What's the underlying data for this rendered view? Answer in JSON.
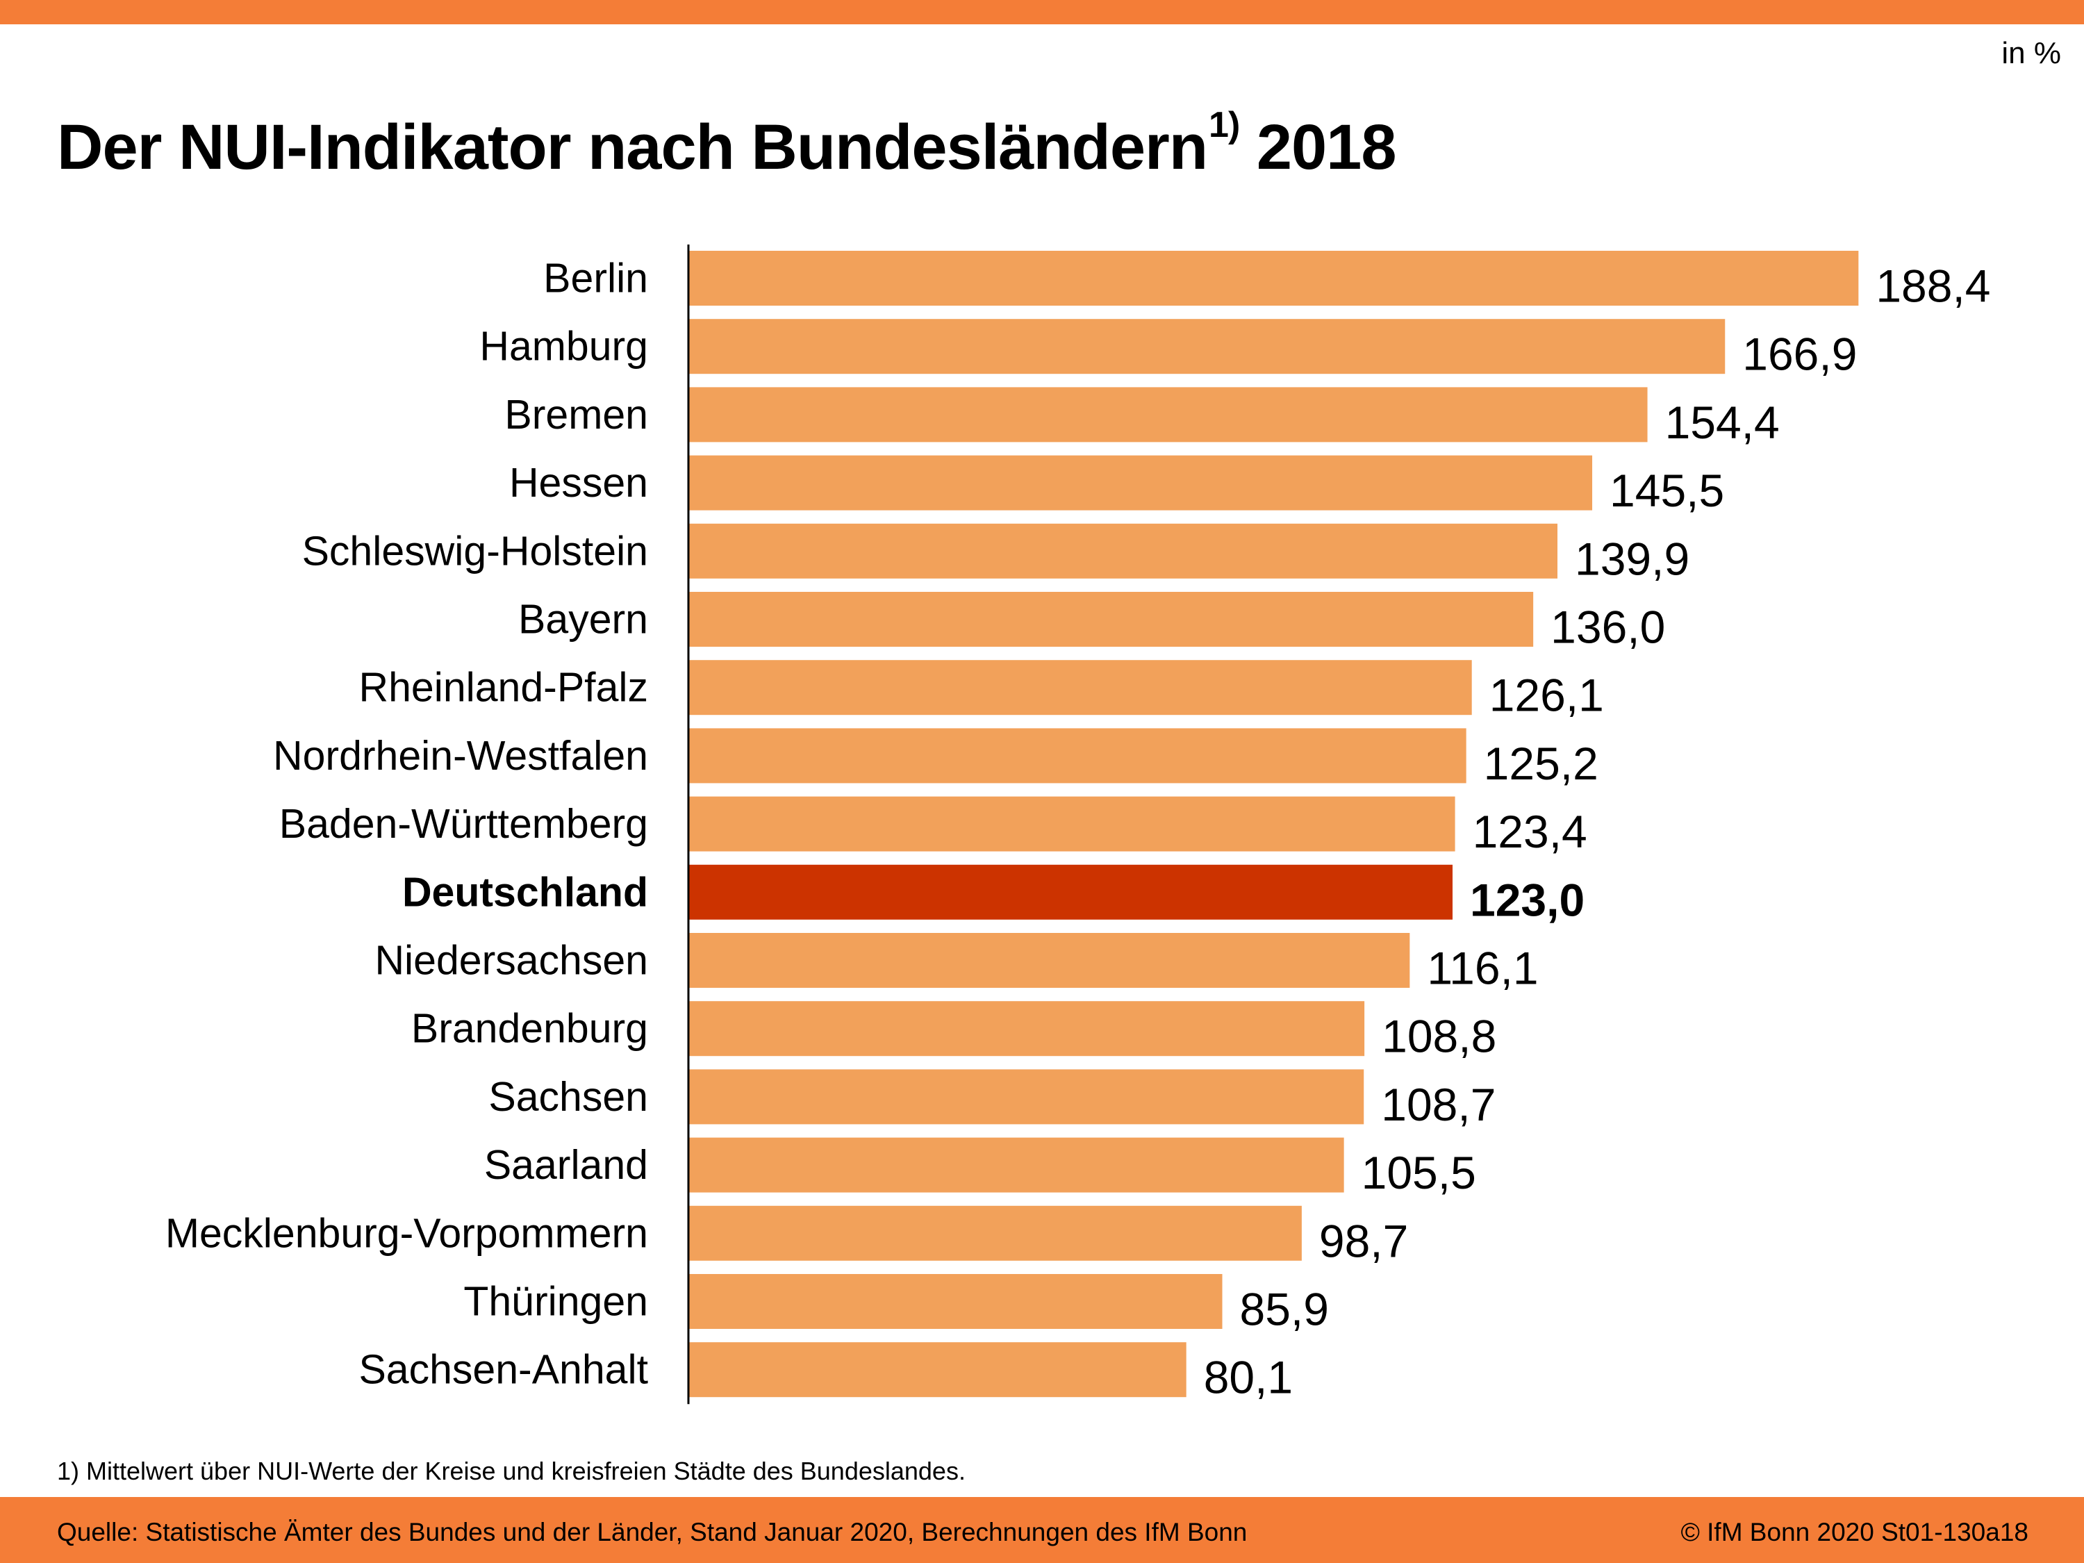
{
  "header": {
    "unit_label": "in %",
    "title": "Der NUI-Indikator nach Bundesländern",
    "title_superscript": "1)",
    "title_year": "2018"
  },
  "colors": {
    "band": "#f47d37",
    "bar": "#f2a15a",
    "highlight_bar": "#cc3300",
    "axis": "#000000"
  },
  "chart_data": {
    "type": "bar",
    "orientation": "horizontal",
    "title": "Der NUI-Indikator nach Bundesländern 1) 2018",
    "unit": "in %",
    "xlabel": "",
    "ylabel": "",
    "xlim": [
      0,
      200
    ],
    "grid": false,
    "legend": "none",
    "highlight_category": "Deutschland",
    "categories": [
      "Berlin",
      "Hamburg",
      "Bremen",
      "Hessen",
      "Schleswig-Holstein",
      "Bayern",
      "Rheinland-Pfalz",
      "Nordrhein-Westfalen",
      "Baden-Württemberg",
      "Deutschland",
      "Niedersachsen",
      "Brandenburg",
      "Sachsen",
      "Saarland",
      "Mecklenburg-Vorpommern",
      "Thüringen",
      "Sachsen-Anhalt"
    ],
    "values": [
      188.4,
      166.9,
      154.4,
      145.5,
      139.9,
      136.0,
      126.1,
      125.2,
      123.4,
      123.0,
      116.1,
      108.8,
      108.7,
      105.5,
      98.7,
      85.9,
      80.1
    ],
    "value_labels": [
      "188,4",
      "166,9",
      "154,4",
      "145,5",
      "139,9",
      "136,0",
      "126,1",
      "125,2",
      "123,4",
      "123,0",
      "116,1",
      "108,8",
      "108,7",
      "105,5",
      "98,7",
      "85,9",
      "80,1"
    ]
  },
  "footnote": "1) Mittelwert über NUI-Werte der Kreise und kreisfreien Städte des Bundeslandes.",
  "footer": {
    "source": "Quelle: Statistische Ämter des Bundes und der Länder, Stand Januar 2020, Berechnungen des IfM Bonn",
    "copyright": "© IfM Bonn 2020 St01-130a18"
  }
}
